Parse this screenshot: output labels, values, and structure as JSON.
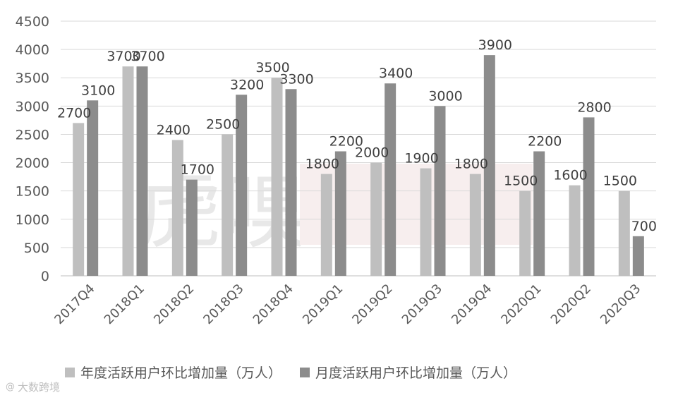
{
  "chart_data": {
    "type": "bar",
    "categories": [
      "2017Q4",
      "2018Q1",
      "2018Q2",
      "2018Q3",
      "2018Q4",
      "2019Q1",
      "2019Q2",
      "2019Q3",
      "2019Q4",
      "2020Q1",
      "2020Q2",
      "2020Q3"
    ],
    "series": [
      {
        "name": "年度活跃用户环比增加量（万人）",
        "color": "#bfbfbf",
        "values": [
          2700,
          3700,
          2400,
          2500,
          3500,
          1800,
          2000,
          1900,
          1800,
          1500,
          1600,
          1500
        ]
      },
      {
        "name": "月度活跃用户环比增加量（万人）",
        "color": "#8c8c8c",
        "values": [
          3100,
          3700,
          1700,
          3200,
          3300,
          2200,
          3400,
          3000,
          3900,
          2200,
          2800,
          700
        ]
      }
    ],
    "yticks": [
      0,
      500,
      1000,
      1500,
      2000,
      2500,
      3000,
      3500,
      4000,
      4500
    ],
    "ylim": [
      0,
      4500
    ],
    "grid": true,
    "legend_position": "bottom",
    "data_labels": true
  },
  "watermark": {
    "left_text": "虎嗅",
    "corner_text": "大数跨境",
    "corner_logo": "@"
  }
}
